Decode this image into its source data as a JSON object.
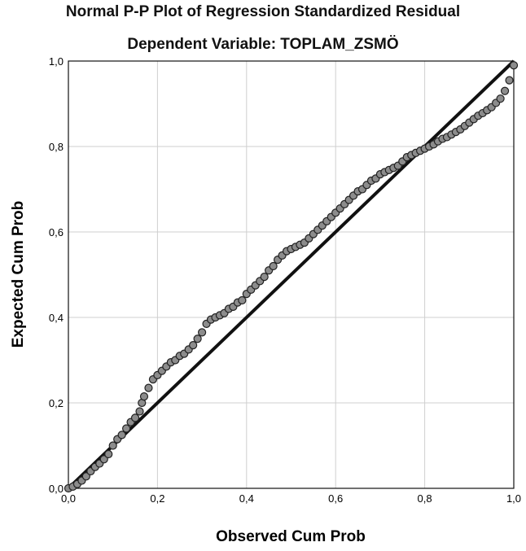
{
  "chart_data": {
    "type": "scatter",
    "title": "Normal P-P Plot of Regression Standardized Residual",
    "subtitle": "Dependent Variable: TOPLAM_ZSMÖ",
    "xlabel": "Observed Cum Prob",
    "ylabel": "Expected Cum Prob",
    "xlim": [
      0,
      1
    ],
    "ylim": [
      0,
      1
    ],
    "x_ticks": [
      "0,0",
      "0,2",
      "0,4",
      "0,6",
      "0,8",
      "1,0"
    ],
    "y_ticks": [
      "0,0",
      "0,2",
      "0,4",
      "0,6",
      "0,8",
      "1,0"
    ],
    "grid": true,
    "reference_line": {
      "from": [
        0,
        0
      ],
      "to": [
        1,
        1
      ]
    },
    "point_color": "#8c8c8c",
    "points": [
      [
        0.0,
        0.0
      ],
      [
        0.01,
        0.004
      ],
      [
        0.02,
        0.01
      ],
      [
        0.03,
        0.018
      ],
      [
        0.04,
        0.028
      ],
      [
        0.05,
        0.04
      ],
      [
        0.06,
        0.05
      ],
      [
        0.07,
        0.058
      ],
      [
        0.08,
        0.068
      ],
      [
        0.09,
        0.08
      ],
      [
        0.1,
        0.1
      ],
      [
        0.11,
        0.115
      ],
      [
        0.12,
        0.125
      ],
      [
        0.13,
        0.14
      ],
      [
        0.14,
        0.155
      ],
      [
        0.15,
        0.165
      ],
      [
        0.16,
        0.18
      ],
      [
        0.165,
        0.2
      ],
      [
        0.17,
        0.215
      ],
      [
        0.18,
        0.235
      ],
      [
        0.19,
        0.255
      ],
      [
        0.2,
        0.265
      ],
      [
        0.21,
        0.275
      ],
      [
        0.22,
        0.285
      ],
      [
        0.23,
        0.295
      ],
      [
        0.24,
        0.3
      ],
      [
        0.25,
        0.31
      ],
      [
        0.26,
        0.315
      ],
      [
        0.27,
        0.325
      ],
      [
        0.28,
        0.335
      ],
      [
        0.29,
        0.35
      ],
      [
        0.3,
        0.365
      ],
      [
        0.31,
        0.385
      ],
      [
        0.32,
        0.395
      ],
      [
        0.33,
        0.4
      ],
      [
        0.34,
        0.405
      ],
      [
        0.35,
        0.41
      ],
      [
        0.36,
        0.42
      ],
      [
        0.37,
        0.425
      ],
      [
        0.38,
        0.435
      ],
      [
        0.39,
        0.44
      ],
      [
        0.4,
        0.455
      ],
      [
        0.41,
        0.465
      ],
      [
        0.42,
        0.475
      ],
      [
        0.43,
        0.485
      ],
      [
        0.44,
        0.495
      ],
      [
        0.45,
        0.51
      ],
      [
        0.46,
        0.52
      ],
      [
        0.47,
        0.535
      ],
      [
        0.48,
        0.545
      ],
      [
        0.49,
        0.555
      ],
      [
        0.5,
        0.56
      ],
      [
        0.51,
        0.565
      ],
      [
        0.52,
        0.57
      ],
      [
        0.53,
        0.575
      ],
      [
        0.54,
        0.585
      ],
      [
        0.55,
        0.595
      ],
      [
        0.56,
        0.605
      ],
      [
        0.57,
        0.615
      ],
      [
        0.58,
        0.625
      ],
      [
        0.59,
        0.635
      ],
      [
        0.6,
        0.645
      ],
      [
        0.61,
        0.655
      ],
      [
        0.62,
        0.665
      ],
      [
        0.63,
        0.675
      ],
      [
        0.64,
        0.685
      ],
      [
        0.65,
        0.695
      ],
      [
        0.66,
        0.7
      ],
      [
        0.67,
        0.71
      ],
      [
        0.68,
        0.72
      ],
      [
        0.69,
        0.725
      ],
      [
        0.7,
        0.735
      ],
      [
        0.71,
        0.74
      ],
      [
        0.72,
        0.745
      ],
      [
        0.73,
        0.75
      ],
      [
        0.74,
        0.755
      ],
      [
        0.75,
        0.765
      ],
      [
        0.76,
        0.775
      ],
      [
        0.77,
        0.78
      ],
      [
        0.78,
        0.785
      ],
      [
        0.79,
        0.79
      ],
      [
        0.8,
        0.795
      ],
      [
        0.81,
        0.8
      ],
      [
        0.82,
        0.805
      ],
      [
        0.83,
        0.812
      ],
      [
        0.84,
        0.818
      ],
      [
        0.85,
        0.822
      ],
      [
        0.86,
        0.828
      ],
      [
        0.87,
        0.834
      ],
      [
        0.88,
        0.84
      ],
      [
        0.89,
        0.848
      ],
      [
        0.9,
        0.856
      ],
      [
        0.91,
        0.864
      ],
      [
        0.92,
        0.872
      ],
      [
        0.93,
        0.878
      ],
      [
        0.94,
        0.885
      ],
      [
        0.95,
        0.892
      ],
      [
        0.96,
        0.902
      ],
      [
        0.97,
        0.912
      ],
      [
        0.98,
        0.93
      ],
      [
        0.99,
        0.955
      ],
      [
        1.0,
        0.99
      ]
    ]
  }
}
